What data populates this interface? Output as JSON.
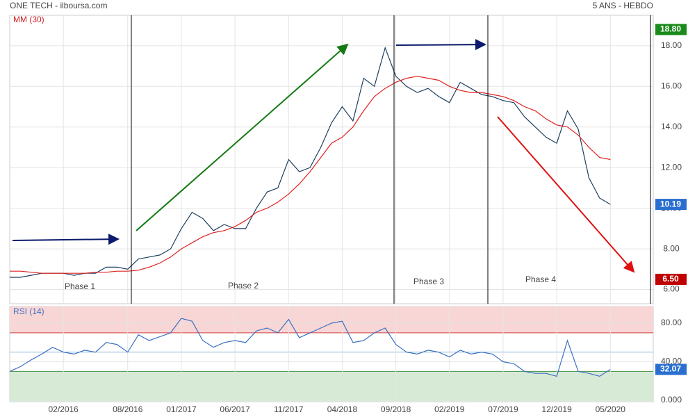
{
  "header": {
    "source": "ONE TECH - ilboursa.com",
    "period": "5 ANS - HEBDO"
  },
  "chart_data": [
    {
      "type": "line",
      "legend": "MM (30)",
      "x": [
        "09/2015",
        "10/2015",
        "11/2015",
        "12/2015",
        "01/2016",
        "02/2016",
        "03/2016",
        "04/2016",
        "05/2016",
        "06/2016",
        "07/2016",
        "08/2016",
        "09/2016",
        "10/2016",
        "11/2016",
        "12/2016",
        "01/2017",
        "02/2017",
        "03/2017",
        "04/2017",
        "05/2017",
        "06/2017",
        "07/2017",
        "08/2017",
        "09/2017",
        "10/2017",
        "11/2017",
        "12/2017",
        "01/2018",
        "02/2018",
        "03/2018",
        "04/2018",
        "05/2018",
        "06/2018",
        "07/2018",
        "08/2018",
        "09/2018",
        "10/2018",
        "11/2018",
        "12/2018",
        "01/2019",
        "02/2019",
        "03/2019",
        "04/2019",
        "05/2019",
        "06/2019",
        "07/2019",
        "08/2019",
        "09/2019",
        "10/2019",
        "11/2019",
        "12/2019",
        "01/2020",
        "02/2020",
        "03/2020",
        "04/2020",
        "05/2020"
      ],
      "series": [
        {
          "name": "ONE TECH",
          "color": "#1d3f5e",
          "values": [
            6.6,
            6.6,
            6.7,
            6.8,
            6.8,
            6.8,
            6.7,
            6.8,
            6.8,
            7.1,
            7.1,
            7.0,
            7.5,
            7.6,
            7.7,
            8.0,
            9.0,
            9.8,
            9.5,
            8.9,
            9.2,
            9.0,
            9.0,
            10.0,
            10.8,
            11.0,
            12.4,
            11.8,
            12.0,
            13.0,
            14.2,
            15.0,
            14.3,
            16.4,
            16.0,
            17.9,
            16.5,
            16.0,
            15.7,
            15.9,
            15.5,
            15.2,
            16.2,
            15.9,
            15.6,
            15.5,
            15.3,
            15.2,
            14.5,
            14.0,
            13.5,
            13.2,
            14.8,
            13.9,
            11.5,
            10.5,
            10.19
          ]
        },
        {
          "name": "MM (30)",
          "color": "#e02020",
          "values": [
            6.9,
            6.9,
            6.85,
            6.8,
            6.8,
            6.8,
            6.8,
            6.8,
            6.85,
            6.85,
            6.9,
            6.9,
            6.95,
            7.1,
            7.3,
            7.6,
            8.0,
            8.3,
            8.6,
            8.8,
            8.9,
            9.1,
            9.4,
            9.8,
            10.0,
            10.3,
            10.7,
            11.2,
            11.8,
            12.5,
            13.2,
            13.5,
            14.0,
            14.8,
            15.5,
            15.9,
            16.2,
            16.4,
            16.5,
            16.4,
            16.3,
            16.0,
            15.8,
            15.7,
            15.7,
            15.6,
            15.5,
            15.3,
            15.0,
            14.8,
            14.4,
            14.1,
            14.0,
            13.6,
            13.0,
            12.5,
            12.4
          ]
        }
      ],
      "xlim": [
        "09/2015",
        "09/2020"
      ],
      "ylim": [
        5.3,
        19.5
      ],
      "yticks": [
        {
          "value": 6,
          "label": "6.00"
        },
        {
          "value": 8,
          "label": "8.00"
        },
        {
          "value": 10,
          "label": "10.00"
        },
        {
          "value": 12,
          "label": "12.00"
        },
        {
          "value": 14,
          "label": "14.00"
        },
        {
          "value": 16,
          "label": "16.00"
        },
        {
          "value": 18,
          "label": "18.00"
        }
      ],
      "price_labels": [
        {
          "value": 18.8,
          "label": "18.80",
          "color": "#1a8a1a"
        },
        {
          "value": 10.19,
          "label": "10.19",
          "color": "#2a6fd0"
        },
        {
          "value": 6.5,
          "label": "6.50",
          "color": "#c00000"
        }
      ],
      "phases": [
        "Phase 1",
        "Phase 2",
        "Phase 3",
        "Phase 4"
      ]
    },
    {
      "type": "line",
      "legend": "RSI (14)",
      "x": [
        "09/2015",
        "10/2015",
        "11/2015",
        "12/2015",
        "01/2016",
        "02/2016",
        "03/2016",
        "04/2016",
        "05/2016",
        "06/2016",
        "07/2016",
        "08/2016",
        "09/2016",
        "10/2016",
        "11/2016",
        "12/2016",
        "01/2017",
        "02/2017",
        "03/2017",
        "04/2017",
        "05/2017",
        "06/2017",
        "07/2017",
        "08/2017",
        "09/2017",
        "10/2017",
        "11/2017",
        "12/2017",
        "01/2018",
        "02/2018",
        "03/2018",
        "04/2018",
        "05/2018",
        "06/2018",
        "07/2018",
        "08/2018",
        "09/2018",
        "10/2018",
        "11/2018",
        "12/2018",
        "01/2019",
        "02/2019",
        "03/2019",
        "04/2019",
        "05/2019",
        "06/2019",
        "07/2019",
        "08/2019",
        "09/2019",
        "10/2019",
        "11/2019",
        "12/2019",
        "01/2020",
        "02/2020",
        "03/2020",
        "04/2020",
        "05/2020"
      ],
      "series": [
        {
          "name": "RSI (14)",
          "color": "#3a70c0",
          "values": [
            30,
            35,
            42,
            48,
            55,
            50,
            48,
            52,
            50,
            60,
            58,
            50,
            68,
            62,
            66,
            70,
            85,
            82,
            62,
            55,
            60,
            62,
            60,
            72,
            75,
            70,
            84,
            65,
            70,
            75,
            80,
            82,
            60,
            62,
            70,
            75,
            58,
            50,
            48,
            52,
            50,
            45,
            52,
            48,
            50,
            48,
            40,
            38,
            30,
            28,
            28,
            25,
            62,
            30,
            28,
            25,
            32.07
          ]
        }
      ],
      "xlim": [
        "09/2015",
        "09/2020"
      ],
      "ylim": [
        -1.4,
        97.3
      ],
      "yticks": [
        {
          "value": 0,
          "label": "0.000"
        },
        {
          "value": 40,
          "label": "40.00"
        },
        {
          "value": 80,
          "label": "80.00"
        }
      ],
      "zones": {
        "upper": 70,
        "middle": 50,
        "lower": 30
      },
      "value_label": {
        "value": 32.07,
        "label": "32.07",
        "color": "#2a6fd0"
      },
      "xticks": [
        "02/2016",
        "08/2016",
        "01/2017",
        "06/2017",
        "11/2017",
        "04/2018",
        "09/2018",
        "02/2019",
        "07/2019",
        "12/2019",
        "05/2020"
      ]
    }
  ]
}
